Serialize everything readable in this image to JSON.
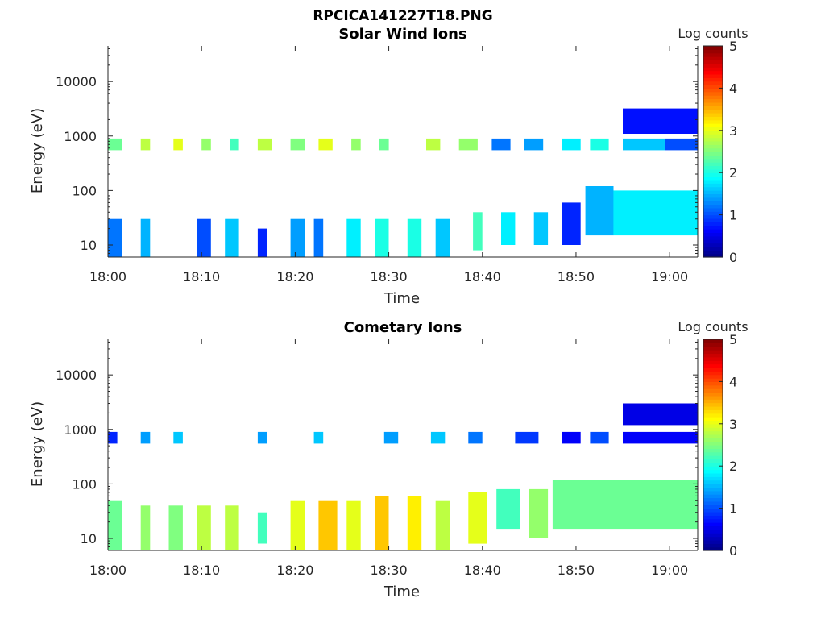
{
  "figure": {
    "title": "RPCICA141227T18.PNG"
  },
  "chart_data": [
    {
      "type": "heatmap",
      "title": "Solar Wind Ions",
      "xlabel": "Time",
      "ylabel": "Energy (eV)",
      "colorbar_label": "Log counts",
      "yscale": "log",
      "ylim": [
        6,
        45000
      ],
      "x_ticks": [
        "18:00",
        "18:10",
        "18:20",
        "18:30",
        "18:40",
        "18:50",
        "19:00"
      ],
      "y_ticks": [
        "10",
        "100",
        "1000",
        "10000"
      ],
      "colorbar_ticks": [
        "0",
        "1",
        "2",
        "3",
        "4",
        "5"
      ],
      "colorbar_range": [
        0,
        5
      ],
      "xlim_minutes_after_1800": [
        0,
        63
      ],
      "colormap": "jet",
      "bands": [
        {
          "t_start_min": 0.0,
          "t_end_min": 1.5,
          "e_low_ev": 6,
          "e_high_ev": 30,
          "log_counts": 1.2
        },
        {
          "t_start_min": 3.5,
          "t_end_min": 4.5,
          "e_low_ev": 6,
          "e_high_ev": 30,
          "log_counts": 1.5
        },
        {
          "t_start_min": 9.5,
          "t_end_min": 11.0,
          "e_low_ev": 6,
          "e_high_ev": 30,
          "log_counts": 1.0
        },
        {
          "t_start_min": 12.5,
          "t_end_min": 14.0,
          "e_low_ev": 6,
          "e_high_ev": 30,
          "log_counts": 1.6
        },
        {
          "t_start_min": 16.0,
          "t_end_min": 17.0,
          "e_low_ev": 6,
          "e_high_ev": 20,
          "log_counts": 0.8
        },
        {
          "t_start_min": 19.5,
          "t_end_min": 21.0,
          "e_low_ev": 6,
          "e_high_ev": 30,
          "log_counts": 1.4
        },
        {
          "t_start_min": 22.0,
          "t_end_min": 23.0,
          "e_low_ev": 6,
          "e_high_ev": 30,
          "log_counts": 1.2
        },
        {
          "t_start_min": 25.5,
          "t_end_min": 27.0,
          "e_low_ev": 6,
          "e_high_ev": 30,
          "log_counts": 1.8
        },
        {
          "t_start_min": 28.5,
          "t_end_min": 30.0,
          "e_low_ev": 6,
          "e_high_ev": 30,
          "log_counts": 2.0
        },
        {
          "t_start_min": 32.0,
          "t_end_min": 33.5,
          "e_low_ev": 6,
          "e_high_ev": 30,
          "log_counts": 2.0
        },
        {
          "t_start_min": 35.0,
          "t_end_min": 36.5,
          "e_low_ev": 6,
          "e_high_ev": 30,
          "log_counts": 1.6
        },
        {
          "t_start_min": 39.0,
          "t_end_min": 40.0,
          "e_low_ev": 8,
          "e_high_ev": 40,
          "log_counts": 2.2
        },
        {
          "t_start_min": 42.0,
          "t_end_min": 43.5,
          "e_low_ev": 10,
          "e_high_ev": 40,
          "log_counts": 1.8
        },
        {
          "t_start_min": 45.5,
          "t_end_min": 47.0,
          "e_low_ev": 10,
          "e_high_ev": 40,
          "log_counts": 1.6
        },
        {
          "t_start_min": 48.5,
          "t_end_min": 50.5,
          "e_low_ev": 10,
          "e_high_ev": 60,
          "log_counts": 0.8
        },
        {
          "t_start_min": 51.0,
          "t_end_min": 54.0,
          "e_low_ev": 15,
          "e_high_ev": 120,
          "log_counts": 1.5
        },
        {
          "t_start_min": 54.0,
          "t_end_min": 63.0,
          "e_low_ev": 15,
          "e_high_ev": 100,
          "log_counts": 1.8
        },
        {
          "t_start_min": 0.0,
          "t_end_min": 1.5,
          "e_low_ev": 550,
          "e_high_ev": 900,
          "log_counts": 2.4
        },
        {
          "t_start_min": 3.5,
          "t_end_min": 4.5,
          "e_low_ev": 550,
          "e_high_ev": 900,
          "log_counts": 2.8
        },
        {
          "t_start_min": 7.0,
          "t_end_min": 8.0,
          "e_low_ev": 550,
          "e_high_ev": 900,
          "log_counts": 3.0
        },
        {
          "t_start_min": 10.0,
          "t_end_min": 11.0,
          "e_low_ev": 550,
          "e_high_ev": 900,
          "log_counts": 2.6
        },
        {
          "t_start_min": 13.0,
          "t_end_min": 14.0,
          "e_low_ev": 550,
          "e_high_ev": 900,
          "log_counts": 2.2
        },
        {
          "t_start_min": 16.0,
          "t_end_min": 17.5,
          "e_low_ev": 550,
          "e_high_ev": 900,
          "log_counts": 2.8
        },
        {
          "t_start_min": 19.5,
          "t_end_min": 21.0,
          "e_low_ev": 550,
          "e_high_ev": 900,
          "log_counts": 2.5
        },
        {
          "t_start_min": 22.5,
          "t_end_min": 24.0,
          "e_low_ev": 550,
          "e_high_ev": 900,
          "log_counts": 3.0
        },
        {
          "t_start_min": 26.0,
          "t_end_min": 27.0,
          "e_low_ev": 550,
          "e_high_ev": 900,
          "log_counts": 2.6
        },
        {
          "t_start_min": 29.0,
          "t_end_min": 30.0,
          "e_low_ev": 550,
          "e_high_ev": 900,
          "log_counts": 2.4
        },
        {
          "t_start_min": 34.0,
          "t_end_min": 35.5,
          "e_low_ev": 550,
          "e_high_ev": 900,
          "log_counts": 2.8
        },
        {
          "t_start_min": 37.5,
          "t_end_min": 39.5,
          "e_low_ev": 550,
          "e_high_ev": 900,
          "log_counts": 2.6
        },
        {
          "t_start_min": 41.0,
          "t_end_min": 43.0,
          "e_low_ev": 550,
          "e_high_ev": 900,
          "log_counts": 1.2
        },
        {
          "t_start_min": 44.5,
          "t_end_min": 46.5,
          "e_low_ev": 550,
          "e_high_ev": 900,
          "log_counts": 1.4
        },
        {
          "t_start_min": 48.5,
          "t_end_min": 50.5,
          "e_low_ev": 550,
          "e_high_ev": 900,
          "log_counts": 1.8
        },
        {
          "t_start_min": 51.5,
          "t_end_min": 53.5,
          "e_low_ev": 550,
          "e_high_ev": 900,
          "log_counts": 2.0
        },
        {
          "t_start_min": 55.0,
          "t_end_min": 59.5,
          "e_low_ev": 550,
          "e_high_ev": 900,
          "log_counts": 1.6
        },
        {
          "t_start_min": 59.5,
          "t_end_min": 63.0,
          "e_low_ev": 550,
          "e_high_ev": 900,
          "log_counts": 1.0
        },
        {
          "t_start_min": 55.0,
          "t_end_min": 63.0,
          "e_low_ev": 1100,
          "e_high_ev": 3200,
          "log_counts": 0.7
        }
      ]
    },
    {
      "type": "heatmap",
      "title": "Cometary Ions",
      "xlabel": "Time",
      "ylabel": "Energy (eV)",
      "colorbar_label": "Log counts",
      "yscale": "log",
      "ylim": [
        6,
        45000
      ],
      "x_ticks": [
        "18:00",
        "18:10",
        "18:20",
        "18:30",
        "18:40",
        "18:50",
        "19:00"
      ],
      "y_ticks": [
        "10",
        "100",
        "1000",
        "10000"
      ],
      "colorbar_ticks": [
        "0",
        "1",
        "2",
        "3",
        "4",
        "5"
      ],
      "colorbar_range": [
        0,
        5
      ],
      "xlim_minutes_after_1800": [
        0,
        63
      ],
      "colormap": "jet",
      "bands": [
        {
          "t_start_min": 0.0,
          "t_end_min": 1.5,
          "e_low_ev": 6,
          "e_high_ev": 50,
          "log_counts": 2.4
        },
        {
          "t_start_min": 3.5,
          "t_end_min": 4.5,
          "e_low_ev": 6,
          "e_high_ev": 40,
          "log_counts": 2.6
        },
        {
          "t_start_min": 6.5,
          "t_end_min": 8.0,
          "e_low_ev": 6,
          "e_high_ev": 40,
          "log_counts": 2.5
        },
        {
          "t_start_min": 9.5,
          "t_end_min": 11.0,
          "e_low_ev": 6,
          "e_high_ev": 40,
          "log_counts": 2.8
        },
        {
          "t_start_min": 12.5,
          "t_end_min": 14.0,
          "e_low_ev": 6,
          "e_high_ev": 40,
          "log_counts": 2.8
        },
        {
          "t_start_min": 16.0,
          "t_end_min": 17.0,
          "e_low_ev": 8,
          "e_high_ev": 30,
          "log_counts": 2.2
        },
        {
          "t_start_min": 19.5,
          "t_end_min": 21.0,
          "e_low_ev": 6,
          "e_high_ev": 50,
          "log_counts": 3.0
        },
        {
          "t_start_min": 22.5,
          "t_end_min": 24.5,
          "e_low_ev": 6,
          "e_high_ev": 50,
          "log_counts": 3.4
        },
        {
          "t_start_min": 25.5,
          "t_end_min": 27.0,
          "e_low_ev": 6,
          "e_high_ev": 50,
          "log_counts": 3.0
        },
        {
          "t_start_min": 28.5,
          "t_end_min": 30.0,
          "e_low_ev": 6,
          "e_high_ev": 60,
          "log_counts": 3.4
        },
        {
          "t_start_min": 32.0,
          "t_end_min": 33.5,
          "e_low_ev": 6,
          "e_high_ev": 60,
          "log_counts": 3.2
        },
        {
          "t_start_min": 35.0,
          "t_end_min": 36.5,
          "e_low_ev": 6,
          "e_high_ev": 50,
          "log_counts": 2.8
        },
        {
          "t_start_min": 38.5,
          "t_end_min": 40.5,
          "e_low_ev": 8,
          "e_high_ev": 70,
          "log_counts": 3.0
        },
        {
          "t_start_min": 41.5,
          "t_end_min": 44.0,
          "e_low_ev": 15,
          "e_high_ev": 80,
          "log_counts": 2.2
        },
        {
          "t_start_min": 45.0,
          "t_end_min": 47.0,
          "e_low_ev": 10,
          "e_high_ev": 80,
          "log_counts": 2.6
        },
        {
          "t_start_min": 47.5,
          "t_end_min": 63.0,
          "e_low_ev": 15,
          "e_high_ev": 120,
          "log_counts": 2.4
        },
        {
          "t_start_min": 0.0,
          "t_end_min": 1.0,
          "e_low_ev": 550,
          "e_high_ev": 900,
          "log_counts": 0.8
        },
        {
          "t_start_min": 3.5,
          "t_end_min": 4.5,
          "e_low_ev": 550,
          "e_high_ev": 900,
          "log_counts": 1.4
        },
        {
          "t_start_min": 7.0,
          "t_end_min": 8.0,
          "e_low_ev": 550,
          "e_high_ev": 900,
          "log_counts": 1.6
        },
        {
          "t_start_min": 16.0,
          "t_end_min": 17.0,
          "e_low_ev": 550,
          "e_high_ev": 900,
          "log_counts": 1.4
        },
        {
          "t_start_min": 22.0,
          "t_end_min": 23.0,
          "e_low_ev": 550,
          "e_high_ev": 900,
          "log_counts": 1.6
        },
        {
          "t_start_min": 29.5,
          "t_end_min": 31.0,
          "e_low_ev": 550,
          "e_high_ev": 900,
          "log_counts": 1.4
        },
        {
          "t_start_min": 34.5,
          "t_end_min": 36.0,
          "e_low_ev": 550,
          "e_high_ev": 900,
          "log_counts": 1.6
        },
        {
          "t_start_min": 38.5,
          "t_end_min": 40.0,
          "e_low_ev": 550,
          "e_high_ev": 900,
          "log_counts": 1.2
        },
        {
          "t_start_min": 43.5,
          "t_end_min": 46.0,
          "e_low_ev": 550,
          "e_high_ev": 900,
          "log_counts": 0.9
        },
        {
          "t_start_min": 48.5,
          "t_end_min": 50.5,
          "e_low_ev": 550,
          "e_high_ev": 900,
          "log_counts": 0.6
        },
        {
          "t_start_min": 51.5,
          "t_end_min": 53.5,
          "e_low_ev": 550,
          "e_high_ev": 900,
          "log_counts": 1.0
        },
        {
          "t_start_min": 55.0,
          "t_end_min": 63.0,
          "e_low_ev": 550,
          "e_high_ev": 900,
          "log_counts": 0.6
        },
        {
          "t_start_min": 55.0,
          "t_end_min": 63.0,
          "e_low_ev": 1200,
          "e_high_ev": 3000,
          "log_counts": 0.5
        }
      ]
    }
  ]
}
